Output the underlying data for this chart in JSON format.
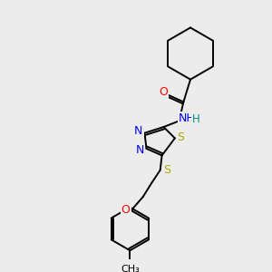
{
  "background_color": "#ececec",
  "bond_color": "#000000",
  "atom_colors": {
    "O": "#ff0000",
    "N": "#0000ee",
    "S": "#aaaa00",
    "H": "#008b8b",
    "C": "#000000"
  },
  "figsize": [
    3.0,
    3.0
  ],
  "dpi": 100,
  "bond_lw": 1.4,
  "font_size": 8.5
}
